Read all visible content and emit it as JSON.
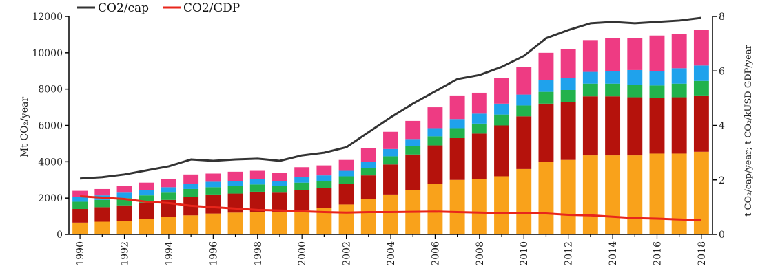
{
  "chart_data": {
    "type": "bar",
    "x": [
      "1990",
      "1991",
      "1992",
      "1993",
      "1994",
      "1995",
      "1996",
      "1997",
      "1998",
      "1999",
      "2000",
      "2001",
      "2002",
      "2003",
      "2004",
      "2005",
      "2006",
      "2007",
      "2008",
      "2009",
      "2010",
      "2011",
      "2012",
      "2013",
      "2014",
      "2015",
      "2016",
      "2017",
      "2018"
    ],
    "x_tick_labels": [
      "1990",
      "1992",
      "1994",
      "1996",
      "1998",
      "2000",
      "2002",
      "2004",
      "2006",
      "2008",
      "2010",
      "2012",
      "2014",
      "2016",
      "2018"
    ],
    "ylabel_left": "Mt CO₂/year",
    "ylabel_right": "t CO₂/cap/year; t CO₂/kUSD GDP/year",
    "ylim_left": [
      0,
      12000
    ],
    "ylim_right": [
      0,
      8
    ],
    "y_ticks_left": [
      "0",
      "2000",
      "4000",
      "6000",
      "8000",
      "10000",
      "12000"
    ],
    "y_ticks_right": [
      "0",
      "2",
      "4",
      "6",
      "8"
    ],
    "stack_series": [
      {
        "color": "#f9a21b",
        "values": [
          650,
          700,
          750,
          850,
          950,
          1050,
          1150,
          1200,
          1250,
          1250,
          1350,
          1450,
          1650,
          1950,
          2200,
          2450,
          2800,
          3000,
          3050,
          3200,
          3600,
          4000,
          4100,
          4350,
          4350,
          4350,
          4450,
          4450,
          4550
        ]
      },
      {
        "color": "#b5120c",
        "values": [
          750,
          800,
          850,
          900,
          950,
          1000,
          1050,
          1050,
          1100,
          1050,
          1100,
          1100,
          1150,
          1300,
          1650,
          1950,
          2100,
          2300,
          2500,
          2800,
          2900,
          3200,
          3200,
          3250,
          3250,
          3200,
          3050,
          3100,
          3100
        ]
      },
      {
        "color": "#22b24c",
        "values": [
          400,
          400,
          400,
          400,
          400,
          450,
          400,
          400,
          400,
          350,
          400,
          400,
          400,
          400,
          450,
          450,
          500,
          550,
          550,
          600,
          600,
          650,
          650,
          700,
          700,
          700,
          700,
          750,
          800
        ]
      },
      {
        "color": "#1fa2ec",
        "values": [
          250,
          250,
          300,
          300,
          300,
          300,
          300,
          300,
          300,
          300,
          300,
          300,
          300,
          350,
          400,
          400,
          450,
          500,
          550,
          600,
          600,
          650,
          650,
          650,
          700,
          800,
          800,
          850,
          850
        ]
      },
      {
        "color": "#ee3b83",
        "values": [
          350,
          350,
          350,
          400,
          450,
          500,
          450,
          500,
          450,
          450,
          550,
          550,
          600,
          750,
          950,
          1000,
          1150,
          1300,
          1150,
          1400,
          1500,
          1500,
          1600,
          1750,
          1800,
          1750,
          1950,
          1900,
          1950
        ]
      }
    ],
    "series": [
      {
        "name": "CO2/cap",
        "color": "#333333",
        "axis": "right",
        "values": [
          2.05,
          2.1,
          2.2,
          2.35,
          2.5,
          2.75,
          2.7,
          2.75,
          2.78,
          2.7,
          2.9,
          3.0,
          3.2,
          3.75,
          4.3,
          4.8,
          5.25,
          5.7,
          5.85,
          6.15,
          6.55,
          7.2,
          7.5,
          7.75,
          7.8,
          7.75,
          7.8,
          7.85,
          7.95
        ]
      },
      {
        "name": "CO2/GDP",
        "color": "#e8261b",
        "axis": "right",
        "values": [
          1.4,
          1.35,
          1.3,
          1.2,
          1.15,
          1.05,
          1.0,
          0.95,
          0.9,
          0.88,
          0.85,
          0.82,
          0.8,
          0.82,
          0.82,
          0.83,
          0.84,
          0.82,
          0.8,
          0.78,
          0.78,
          0.77,
          0.72,
          0.7,
          0.65,
          0.6,
          0.58,
          0.55,
          0.52
        ]
      }
    ]
  }
}
